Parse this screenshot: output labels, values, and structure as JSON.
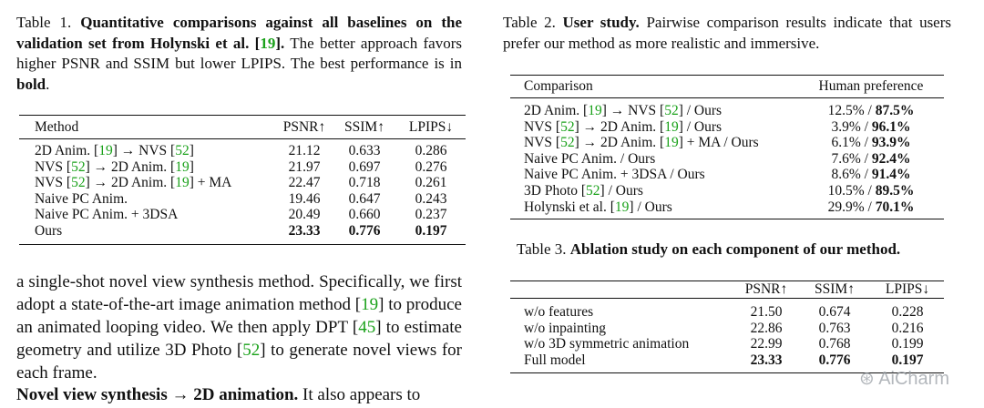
{
  "left": {
    "table1": {
      "label": "Table 1.",
      "title_bold": "Quantitative comparisons against all baselines on the validation set from Holynski et al. [19].",
      "caption_rest": "The better approach favors higher PSNR and SSIM but lower LPIPS. The best performance is in",
      "caption_bold_word": "bold",
      "headers": [
        "Method",
        "PSNR↑",
        "SSIM↑",
        "LPIPS↓"
      ],
      "rows": [
        [
          "2D Anim. [19] → NVS [52]",
          "21.12",
          "0.633",
          "0.286"
        ],
        [
          "NVS [52] → 2D Anim. [19]",
          "21.97",
          "0.697",
          "0.276"
        ],
        [
          "NVS [52] → 2D Anim. [19] + MA",
          "22.47",
          "0.718",
          "0.261"
        ],
        [
          "Naive PC Anim.",
          "19.46",
          "0.647",
          "0.243"
        ],
        [
          "Naive PC Anim. + 3DSA",
          "20.49",
          "0.660",
          "0.237"
        ],
        [
          "Ours",
          "23.33",
          "0.776",
          "0.197"
        ]
      ]
    },
    "paragraph": "a single-shot novel view synthesis method. Specifically, we first adopt a state-of-the-art image animation method [19] to produce an animated looping video. We then apply DPT [45] to estimate geometry and utilize 3D Photo [52] to generate novel views for each frame.",
    "heading_bold": "Novel view synthesis → 2D animation.",
    "heading_rest": "It also appears to"
  },
  "right": {
    "table2": {
      "label": "Table 2.",
      "title_bold": "User study.",
      "caption_rest": "Pairwise comparison results indicate that users prefer our method as more realistic and immersive.",
      "headers": [
        "Comparison",
        "Human preference"
      ],
      "rows": [
        [
          "2D Anim. [19] → NVS [52] / Ours",
          "12.5% / ",
          "87.5%"
        ],
        [
          "NVS [52] → 2D Anim. [19] / Ours",
          "3.9% / ",
          "96.1%"
        ],
        [
          "NVS [52] → 2D Anim. [19] + MA / Ours",
          "6.1% / ",
          "93.9%"
        ],
        [
          "Naive PC Anim. / Ours",
          "7.6% / ",
          "92.4%"
        ],
        [
          "Naive PC Anim. + 3DSA / Ours",
          "8.6% / ",
          "91.4%"
        ],
        [
          "3D Photo [52] / Ours",
          "10.5% / ",
          "89.5%"
        ],
        [
          "Holynski et al. [19] / Ours",
          "29.9% / ",
          "70.1%"
        ]
      ]
    },
    "table3": {
      "label": "Table 3.",
      "title_bold": "Ablation study on each component of our method.",
      "headers": [
        "",
        "PSNR↑",
        "SSIM↑",
        "LPIPS↓"
      ],
      "rows": [
        [
          "w/o features",
          "21.50",
          "0.674",
          "0.228"
        ],
        [
          "w/o inpainting",
          "22.86",
          "0.763",
          "0.216"
        ],
        [
          "w/o 3D symmetric animation",
          "22.99",
          "0.768",
          "0.199"
        ],
        [
          "Full model",
          "23.33",
          "0.776",
          "0.197"
        ]
      ]
    },
    "watermark": "AiCharm"
  }
}
